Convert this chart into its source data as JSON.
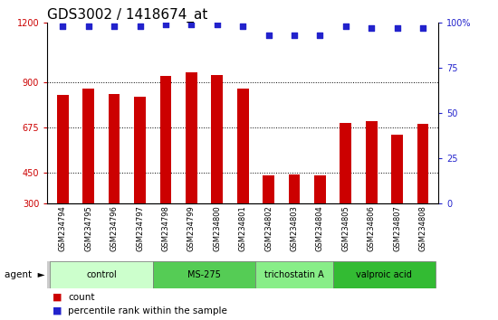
{
  "title": "GDS3002 / 1418674_at",
  "samples": [
    "GSM234794",
    "GSM234795",
    "GSM234796",
    "GSM234797",
    "GSM234798",
    "GSM234799",
    "GSM234800",
    "GSM234801",
    "GSM234802",
    "GSM234803",
    "GSM234804",
    "GSM234805",
    "GSM234806",
    "GSM234807",
    "GSM234808"
  ],
  "counts": [
    840,
    870,
    845,
    830,
    935,
    950,
    940,
    870,
    440,
    445,
    438,
    700,
    710,
    640,
    695
  ],
  "percentile_ranks": [
    98,
    98,
    98,
    98,
    99,
    99,
    99,
    98,
    93,
    93,
    93,
    98,
    97,
    97,
    97
  ],
  "ylim_left": [
    300,
    1200
  ],
  "ylim_right": [
    0,
    100
  ],
  "yticks_left": [
    300,
    450,
    675,
    900,
    1200
  ],
  "yticks_right": [
    0,
    25,
    50,
    75,
    100
  ],
  "bar_color": "#CC0000",
  "dot_color": "#2222CC",
  "groups": [
    {
      "label": "control",
      "start": 0,
      "end": 4,
      "color": "#CCFFCC"
    },
    {
      "label": "MS-275",
      "start": 4,
      "end": 8,
      "color": "#55CC55"
    },
    {
      "label": "trichostatin A",
      "start": 8,
      "end": 11,
      "color": "#88EE88"
    },
    {
      "label": "valproic acid",
      "start": 11,
      "end": 15,
      "color": "#33BB33"
    }
  ],
  "bar_color_legend": "#CC0000",
  "dot_color_legend": "#2222CC",
  "title_fontsize": 11,
  "tick_fontsize": 7,
  "xtick_fontsize": 6,
  "agent_label": "agent",
  "grid_yticks": [
    450,
    675,
    900
  ],
  "dot_size": 15
}
